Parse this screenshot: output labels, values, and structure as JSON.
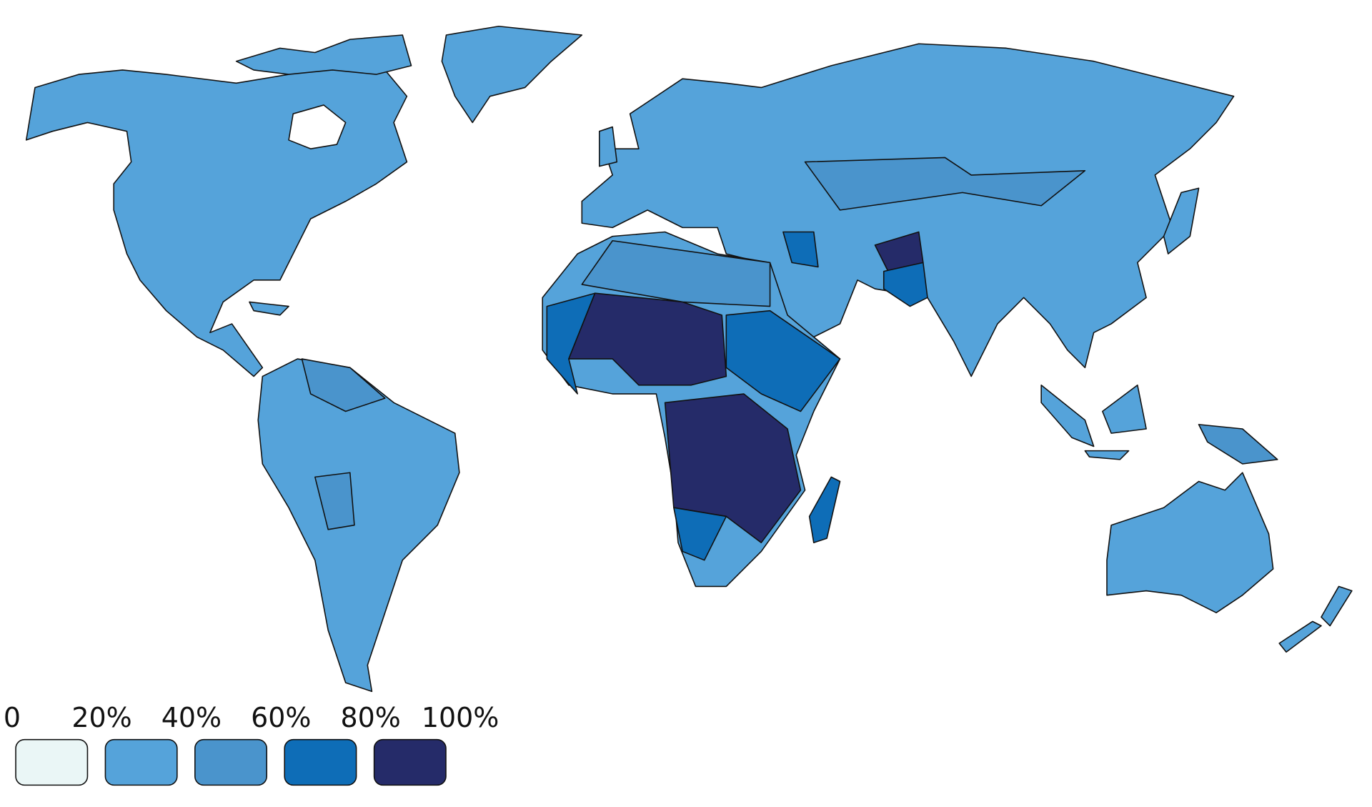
{
  "legend": {
    "labels": [
      "0",
      "20%",
      "40%",
      "60%",
      "80%",
      "100%"
    ],
    "bins": [
      {
        "color": "#eaf6f6"
      },
      {
        "color": "#55a3da"
      },
      {
        "color": "#4a94cc"
      },
      {
        "color": "#0e6db7"
      },
      {
        "color": "#252b69"
      }
    ]
  }
}
